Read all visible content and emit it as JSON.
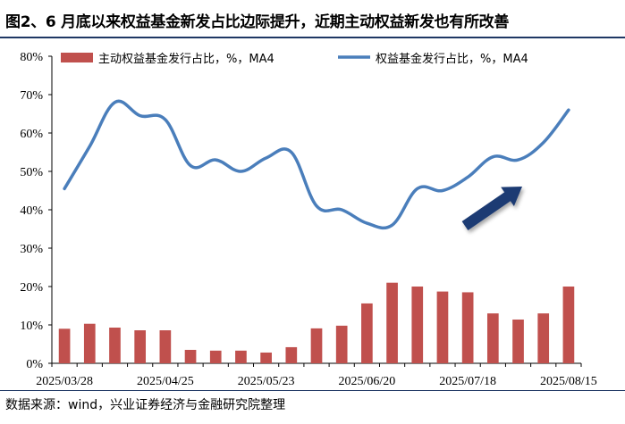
{
  "title": "图2、6 月底以来权益基金新发占比边际提升，近期主动权益新发也有所改善",
  "source": "数据来源：wind，兴业证券经济与金融研究院整理",
  "chart_data": {
    "type": "bar+line",
    "x": [
      "2025/03/28",
      "2025/04/04",
      "2025/04/11",
      "2025/04/18",
      "2025/04/25",
      "2025/05/02",
      "2025/05/09",
      "2025/05/16",
      "2025/05/23",
      "2025/05/30",
      "2025/06/06",
      "2025/06/13",
      "2025/06/20",
      "2025/06/27",
      "2025/07/04",
      "2025/07/11",
      "2025/07/18",
      "2025/07/25",
      "2025/08/01",
      "2025/08/08",
      "2025/08/15"
    ],
    "x_tick_labels": [
      "2025/03/28",
      "2025/04/25",
      "2025/05/23",
      "2025/06/20",
      "2025/07/18",
      "2025/08/15"
    ],
    "ylim": [
      0,
      80
    ],
    "y_ticks": [
      "0%",
      "10%",
      "20%",
      "30%",
      "40%",
      "50%",
      "60%",
      "70%",
      "80%"
    ],
    "grid": false,
    "legend_position": "top",
    "series": [
      {
        "name": "主动权益基金发行占比，%，MA4",
        "type": "bar",
        "color": "#c0504d",
        "values": [
          9.0,
          10.3,
          9.3,
          8.6,
          8.6,
          3.5,
          3.3,
          3.3,
          2.8,
          4.2,
          9.1,
          9.8,
          15.6,
          21.0,
          20.0,
          18.7,
          18.5,
          13.0,
          11.4,
          13.0,
          20.0
        ]
      },
      {
        "name": "权益基金发行占比，%，MA4",
        "type": "line",
        "color": "#4a7ebb",
        "values": [
          45.5,
          56.5,
          68.0,
          64.5,
          63.5,
          51.5,
          53.0,
          50.0,
          53.5,
          55.0,
          41.0,
          40.0,
          36.5,
          36.0,
          45.5,
          45.0,
          48.5,
          53.8,
          53.0,
          57.5,
          66.0
        ]
      }
    ],
    "annotation": {
      "type": "arrow",
      "direction": "up-right",
      "color": "#1f3b73"
    }
  }
}
